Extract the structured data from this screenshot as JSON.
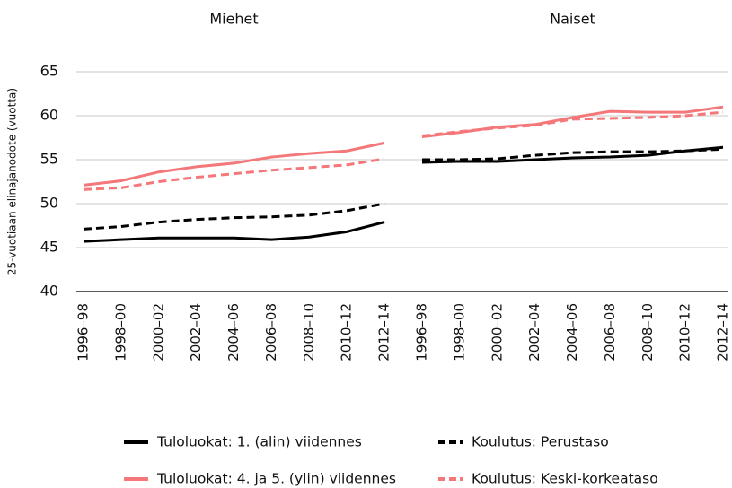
{
  "chart_data": [
    {
      "type": "line",
      "title": "Miehet",
      "ylabel": "25-vuotiaan elinajanodote (vuotta)",
      "categories": [
        "1996–98",
        "1998–00",
        "2000–02",
        "2002–04",
        "2004–06",
        "2006–08",
        "2008–10",
        "2010–12",
        "2012–14"
      ],
      "ylim": [
        40,
        65
      ],
      "yticks": [
        40,
        45,
        50,
        55,
        60,
        65
      ],
      "grid": true,
      "series": [
        {
          "name": "Tuloluokat: 1. (alin) viidennes",
          "color": "#000000",
          "dashed": false,
          "values": [
            45.7,
            45.9,
            46.1,
            46.1,
            46.1,
            45.9,
            46.2,
            46.8,
            47.9
          ]
        },
        {
          "name": "Koulutus: Perustaso",
          "color": "#000000",
          "dashed": true,
          "values": [
            47.1,
            47.4,
            47.9,
            48.2,
            48.4,
            48.5,
            48.7,
            49.2,
            50.0
          ]
        },
        {
          "name": "Tuloluokat: 4. ja 5. (ylin) viidennes",
          "color": "#f4777a",
          "dashed": false,
          "values": [
            52.1,
            52.6,
            53.6,
            54.2,
            54.6,
            55.3,
            55.7,
            56.0,
            56.9
          ]
        },
        {
          "name": "Koulutus: Keski-korkeataso",
          "color": "#f4777a",
          "dashed": true,
          "values": [
            51.6,
            51.8,
            52.5,
            53.0,
            53.4,
            53.8,
            54.1,
            54.4,
            55.1
          ]
        }
      ]
    },
    {
      "type": "line",
      "title": "Naiset",
      "categories": [
        "1996–98",
        "1998–00",
        "2000–02",
        "2002–04",
        "2004–06",
        "2006–08",
        "2008–10",
        "2010–12",
        "2012–14"
      ],
      "ylim": [
        40,
        65
      ],
      "yticks": [
        40,
        45,
        50,
        55,
        60,
        65
      ],
      "grid": true,
      "series": [
        {
          "color": "#000000",
          "dashed": false,
          "values": [
            54.7,
            54.8,
            54.8,
            55.0,
            55.2,
            55.3,
            55.5,
            56.0,
            56.4
          ]
        },
        {
          "color": "#000000",
          "dashed": true,
          "values": [
            55.0,
            55.0,
            55.1,
            55.5,
            55.8,
            55.9,
            55.9,
            56.0,
            56.2
          ]
        },
        {
          "color": "#f4777a",
          "dashed": false,
          "values": [
            57.6,
            58.1,
            58.7,
            59.0,
            59.8,
            60.5,
            60.4,
            60.4,
            61.0
          ]
        },
        {
          "color": "#f4777a",
          "dashed": true,
          "values": [
            57.7,
            58.2,
            58.6,
            58.9,
            59.6,
            59.7,
            59.8,
            60.0,
            60.4
          ]
        }
      ]
    }
  ]
}
